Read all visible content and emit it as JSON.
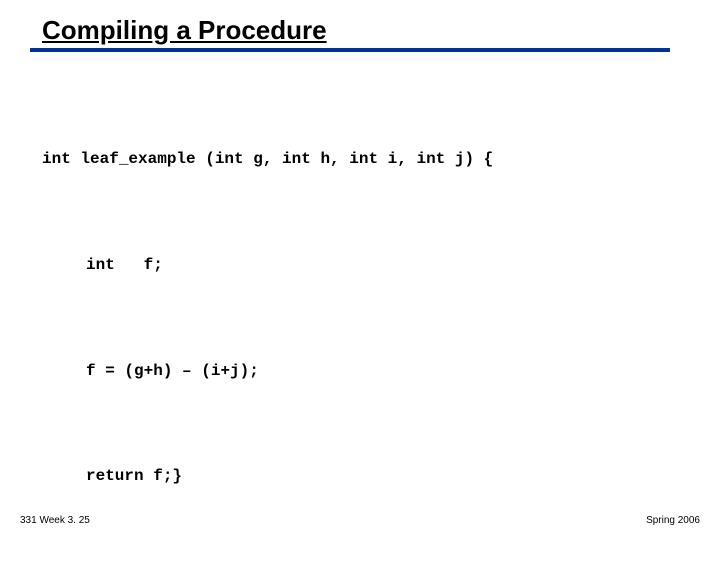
{
  "slide": {
    "title": "Compiling a Procedure",
    "divider_color": "#003399",
    "code": {
      "line1": "int leaf_example (int g, int h, int i, int j) {",
      "line2": "int   f;",
      "line3": "f = (g+h) – (i+j);",
      "line4": "return f;}"
    },
    "footer_left": "331 Week 3. 25",
    "footer_right": "Spring 2006",
    "style": {
      "title_fontsize": 26,
      "code_fontsize": 16,
      "code_font": "Courier New",
      "footer_fontsize": 10,
      "background_color": "#ffffff",
      "text_color": "#000000"
    }
  }
}
